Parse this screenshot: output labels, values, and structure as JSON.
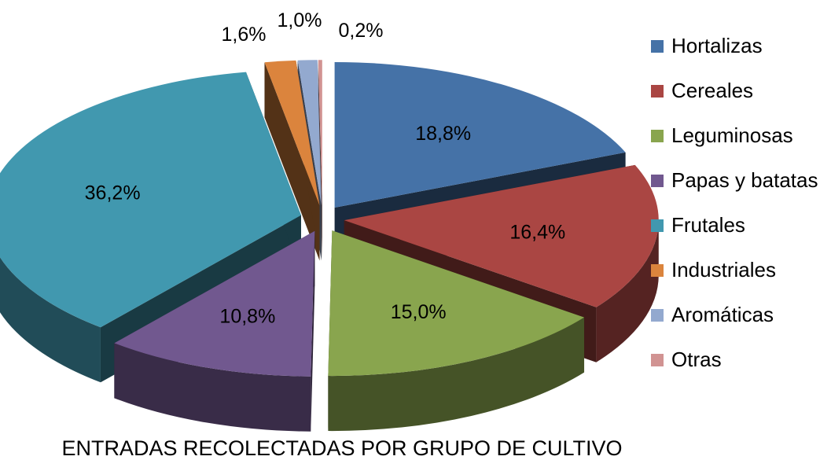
{
  "chart_data": {
    "type": "pie",
    "title": "ENTRADAS RECOLECTADAS POR GRUPO DE CULTIVO",
    "exploded": true,
    "three_d": true,
    "legend_position": "right",
    "slices": [
      {
        "name": "Hortalizas",
        "value": 18.8,
        "label": "18,8%",
        "color": "#4572A7"
      },
      {
        "name": "Cereales",
        "value": 16.4,
        "label": "16,4%",
        "color": "#AA4643"
      },
      {
        "name": "Leguminosas",
        "value": 15.0,
        "label": "15,0%",
        "color": "#89A54E"
      },
      {
        "name": "Papas y batatas",
        "value": 10.8,
        "label": "10,8%",
        "color": "#71588F"
      },
      {
        "name": "Frutales",
        "value": 36.2,
        "label": "36,2%",
        "color": "#4198AF"
      },
      {
        "name": "Industriales",
        "value": 1.6,
        "label": "1,6%",
        "color": "#DB843D"
      },
      {
        "name": "Aromáticas",
        "value": 1.0,
        "label": "1,0%",
        "color": "#93A9CF"
      },
      {
        "name": "Otras",
        "value": 0.2,
        "label": "0,2%",
        "color": "#D19392"
      }
    ]
  }
}
